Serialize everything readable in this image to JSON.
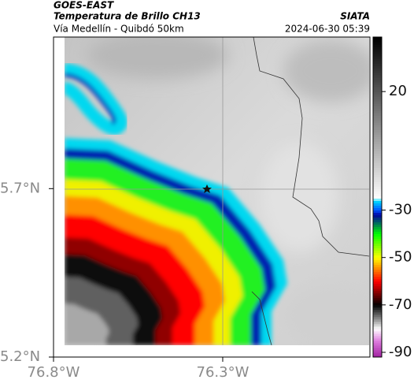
{
  "header": {
    "product": "GOES-EAST",
    "title": "Temperatura de Brillo CH13",
    "subtitle": "Vía Medellín - Quibdó 50km",
    "source": "SIATA",
    "datetime": "2024-06-30 05:39"
  },
  "map": {
    "xlim": [
      -76.8,
      -75.865
    ],
    "ylim": [
      5.2,
      6.15
    ],
    "xticks": [
      {
        "value": -76.8,
        "label": "76.8°W"
      },
      {
        "value": -76.3,
        "label": "76.3°W"
      }
    ],
    "yticks": [
      {
        "value": 5.7,
        "label": "5.7°N"
      },
      {
        "value": 5.2,
        "label": "5.2°N"
      }
    ]
  },
  "colorbar": {
    "lim": [
      -92,
      43
    ],
    "ticks": [
      20,
      -30,
      -50,
      -70,
      -90
    ]
  }
}
